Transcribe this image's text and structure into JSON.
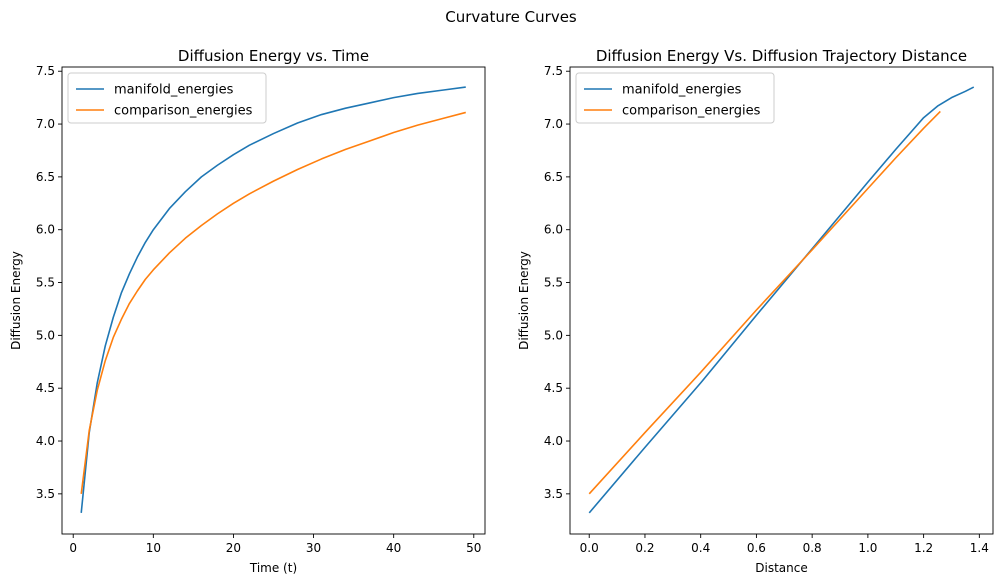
{
  "figure": {
    "suptitle": "Curvature Curves",
    "colors": {
      "manifold": "#1f77b4",
      "comparison": "#ff7f0e"
    }
  },
  "chart_data": [
    {
      "type": "line",
      "title": "Diffusion Energy vs. Time",
      "xlabel": "Time (t)",
      "ylabel": "Diffusion Energy",
      "xlim": [
        -1.4,
        51.4
      ],
      "ylim": [
        3.12,
        7.54
      ],
      "xticks": [
        0,
        10,
        20,
        30,
        40,
        50
      ],
      "yticks": [
        3.5,
        4.0,
        4.5,
        5.0,
        5.5,
        6.0,
        6.5,
        7.0,
        7.5
      ],
      "xtick_labels": [
        "0",
        "10",
        "20",
        "30",
        "40",
        "50"
      ],
      "ytick_labels": [
        "3.5",
        "4.0",
        "4.5",
        "5.0",
        "5.5",
        "6.0",
        "6.5",
        "7.0",
        "7.5"
      ],
      "grid": false,
      "legend": "upper left",
      "x": [
        1,
        2,
        3,
        4,
        5,
        6,
        7,
        8,
        9,
        10,
        12,
        14,
        16,
        18,
        20,
        22,
        25,
        28,
        31,
        34,
        37,
        40,
        43,
        46,
        49
      ],
      "series": [
        {
          "name": "manifold_energies",
          "values": [
            3.32,
            4.08,
            4.55,
            4.9,
            5.17,
            5.4,
            5.58,
            5.74,
            5.88,
            6.0,
            6.2,
            6.36,
            6.5,
            6.61,
            6.71,
            6.8,
            6.91,
            7.01,
            7.09,
            7.15,
            7.2,
            7.25,
            7.29,
            7.32,
            7.35
          ]
        },
        {
          "name": "comparison_energies",
          "values": [
            3.5,
            4.1,
            4.48,
            4.76,
            4.98,
            5.15,
            5.3,
            5.42,
            5.53,
            5.62,
            5.78,
            5.92,
            6.04,
            6.15,
            6.25,
            6.34,
            6.46,
            6.57,
            6.67,
            6.76,
            6.84,
            6.92,
            6.99,
            7.05,
            7.11
          ]
        }
      ]
    },
    {
      "type": "line",
      "title": "Diffusion Energy Vs. Diffusion Trajectory Distance",
      "xlabel": "Distance",
      "ylabel": "Diffusion Energy",
      "xlim": [
        -0.069,
        1.449
      ],
      "ylim": [
        3.12,
        7.54
      ],
      "xticks": [
        0.0,
        0.2,
        0.4,
        0.6,
        0.8,
        1.0,
        1.2,
        1.4
      ],
      "yticks": [
        3.5,
        4.0,
        4.5,
        5.0,
        5.5,
        6.0,
        6.5,
        7.0,
        7.5
      ],
      "xtick_labels": [
        "0.0",
        "0.2",
        "0.4",
        "0.6",
        "0.8",
        "1.0",
        "1.2",
        "1.4"
      ],
      "ytick_labels": [
        "3.5",
        "4.0",
        "4.5",
        "5.0",
        "5.5",
        "6.0",
        "6.5",
        "7.0",
        "7.5"
      ],
      "grid": false,
      "legend": "upper left",
      "series": [
        {
          "name": "manifold_energies",
          "x": [
            0.0,
            0.2,
            0.4,
            0.6,
            0.8,
            1.0,
            1.1,
            1.2,
            1.25,
            1.3,
            1.35,
            1.38
          ],
          "values": [
            3.32,
            3.94,
            4.55,
            5.19,
            5.82,
            6.45,
            6.76,
            7.06,
            7.17,
            7.25,
            7.31,
            7.35
          ]
        },
        {
          "name": "comparison_energies",
          "x": [
            0.0,
            0.2,
            0.4,
            0.6,
            0.8,
            1.0,
            1.1,
            1.2,
            1.26
          ],
          "values": [
            3.5,
            4.08,
            4.65,
            5.24,
            5.81,
            6.39,
            6.68,
            6.96,
            7.12
          ]
        }
      ]
    }
  ]
}
